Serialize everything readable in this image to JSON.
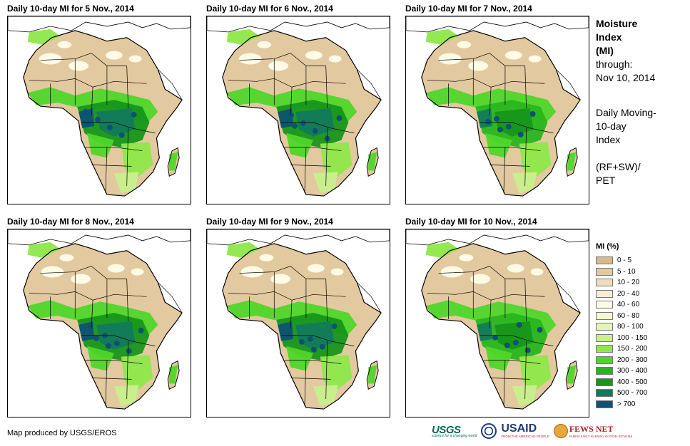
{
  "panels": [
    {
      "title": "Daily 10-day MI for 5 Nov., 2014",
      "variant": 0
    },
    {
      "title": "Daily 10-day MI for 6 Nov., 2014",
      "variant": 1
    },
    {
      "title": "Daily 10-day MI for 7 Nov., 2014",
      "variant": 2
    },
    {
      "title": "Daily 10-day MI for 8 Nov., 2014",
      "variant": 3
    },
    {
      "title": "Daily 10-day MI for 9 Nov., 2014",
      "variant": 4
    },
    {
      "title": "Daily 10-day MI for 10 Nov., 2014",
      "variant": 5
    }
  ],
  "side_info": {
    "title_line1": "Moisture",
    "title_line2": "Index",
    "title_line3": "(MI)",
    "through_label": "through:",
    "through_date": "Nov 10, 2014",
    "desc_line1": "Daily Moving-",
    "desc_line2": "10-day",
    "desc_line3": "Index",
    "formula_line1": "(RF+SW)/",
    "formula_line2": "PET"
  },
  "legend": {
    "title": "MI (%)",
    "items": [
      {
        "label": "0 - 5",
        "color": "#d8b98a"
      },
      {
        "label": "5 - 10",
        "color": "#e3c99f"
      },
      {
        "label": "10 - 20",
        "color": "#efdcbb"
      },
      {
        "label": "20 - 40",
        "color": "#f7ecd5"
      },
      {
        "label": "40 - 60",
        "color": "#fdfae6"
      },
      {
        "label": "60 - 80",
        "color": "#f5f9cf"
      },
      {
        "label": "80 - 100",
        "color": "#e4f5b4"
      },
      {
        "label": "100 - 150",
        "color": "#c8f08c"
      },
      {
        "label": "150 - 200",
        "color": "#8ee84a"
      },
      {
        "label": "200 - 300",
        "color": "#4fd62a"
      },
      {
        "label": "300 - 400",
        "color": "#28b61e"
      },
      {
        "label": "400 - 500",
        "color": "#16961a"
      },
      {
        "label": "500 - 700",
        "color": "#127a5c"
      },
      {
        "label": "> 700",
        "color": "#0d5275"
      }
    ]
  },
  "footer": {
    "credit": "Map produced by USGS/EROS",
    "logo_usgs": "USGS",
    "logo_usgs_tagline": "science for a changing world",
    "logo_usaid": "USAID",
    "logo_usaid_tagline": "FROM THE AMERICAN PEOPLE",
    "logo_fews": "FEWS NET",
    "logo_fews_tagline": "FAMINE EARLY WARNING SYSTEMS NETWORK"
  }
}
